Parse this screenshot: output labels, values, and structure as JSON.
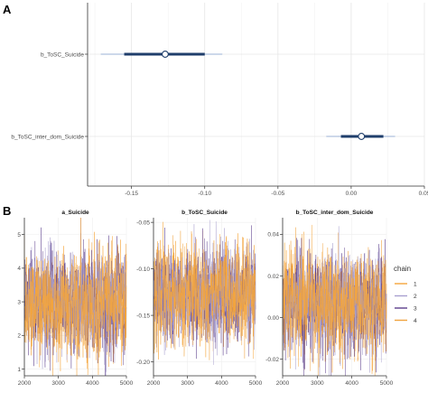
{
  "chart_data": [
    {
      "panel_label": "A",
      "type": "scatter",
      "categories": [
        "b_ToSC_Suicide",
        "b_ToSC_inter_dom_Suicide"
      ],
      "points": [
        {
          "name": "b_ToSC_Suicide",
          "median": -0.127,
          "inner": [
            -0.155,
            -0.1
          ],
          "outer": [
            -0.171,
            -0.088
          ]
        },
        {
          "name": "b_ToSC_inter_dom_Suicide",
          "median": 0.007,
          "inner": [
            -0.007,
            0.022
          ],
          "outer": [
            -0.017,
            0.03
          ]
        }
      ],
      "xticks": [
        "-0.15",
        "-0.10",
        "-0.05",
        "0.00",
        "0.05"
      ],
      "xtick_values": [
        -0.15,
        -0.1,
        -0.05,
        0.0,
        0.05
      ],
      "xlim": [
        -0.18,
        0.05
      ],
      "grid": true,
      "colors": {
        "point_fill": "#ffffff",
        "interval": "#1f3e6b",
        "outer": "#9bb2d6"
      }
    },
    {
      "panel_label": "B",
      "type": "line",
      "iterations": [
        2000,
        5000
      ],
      "legend_title": "chain",
      "legend_position": "right",
      "chains": [
        {
          "name": "1",
          "color": "#f6a63b"
        },
        {
          "name": "2",
          "color": "#a8a0cf"
        },
        {
          "name": "3",
          "color": "#5c3f8c"
        },
        {
          "name": "4",
          "color": "#f0a440"
        }
      ],
      "panels": [
        {
          "title": "a_Suicide",
          "ylim": [
            0.8,
            5.5
          ],
          "yticks": [
            "1",
            "2",
            "3",
            "4",
            "5"
          ],
          "ytick_values": [
            1,
            2,
            3,
            4,
            5
          ],
          "mean": 3.0,
          "sd": 0.65,
          "xticks": [
            "2000",
            "3000",
            "4000",
            "5000"
          ]
        },
        {
          "title": "b_ToSC_Suicide",
          "ylim": [
            -0.215,
            -0.045
          ],
          "yticks": [
            "-0.05",
            "-0.10",
            "-0.15",
            "-0.20"
          ],
          "ytick_values": [
            -0.05,
            -0.1,
            -0.15,
            -0.2
          ],
          "mean": -0.127,
          "sd": 0.022,
          "xticks": [
            "2000",
            "3000",
            "4000",
            "5000"
          ]
        },
        {
          "title": "b_ToSC_inter_dom_Suicide",
          "ylim": [
            -0.028,
            0.048
          ],
          "yticks": [
            "0.04",
            "0.02",
            "0.00",
            "-0.02"
          ],
          "ytick_values": [
            0.04,
            0.02,
            0.0,
            -0.02
          ],
          "mean": 0.007,
          "sd": 0.01,
          "xticks": [
            "2000",
            "3000",
            "4000",
            "5000"
          ]
        }
      ]
    }
  ]
}
